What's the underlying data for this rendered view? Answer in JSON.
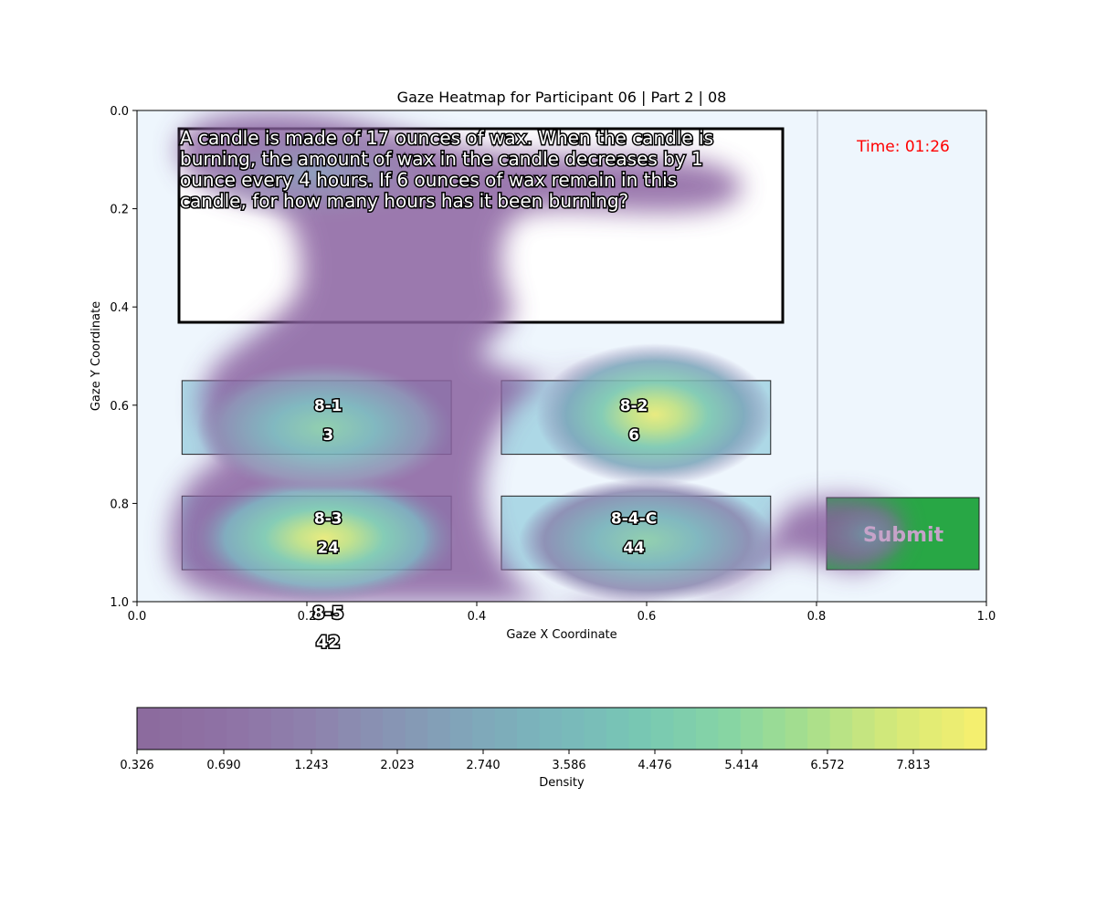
{
  "chart_data": {
    "type": "heatmap",
    "title": "Gaze Heatmap for Participant 06 | Part 2 | 08",
    "xlabel": "Gaze X Coordinate",
    "ylabel": "Gaze Y Coordinate",
    "xlim": [
      0.0,
      1.0
    ],
    "ylim": [
      1.0,
      0.0
    ],
    "x_ticks": [
      "0.0",
      "0.2",
      "0.4",
      "0.6",
      "0.8",
      "1.0"
    ],
    "y_ticks": [
      "0.0",
      "0.2",
      "0.4",
      "0.6",
      "0.8",
      "1.0"
    ],
    "grid": false,
    "question": [
      "A candle is made of 17 ounces of wax. When the candle is",
      "burning, the amount of wax in the candle decreases by 1",
      "ounce every 4 hours. If 6 ounces of wax remain in this",
      "candle, for how many hours has it been burning?"
    ],
    "timer": "Time: 01:26",
    "submit_label": "Submit",
    "options": [
      {
        "id": "8-1",
        "value": "3"
      },
      {
        "id": "8-2",
        "value": "6"
      },
      {
        "id": "8-3",
        "value": "24"
      },
      {
        "id": "8-4-C",
        "value": "44"
      },
      {
        "id": "8-5",
        "value": "42"
      }
    ],
    "density_hotspots": [
      {
        "x": 0.22,
        "y": 0.875,
        "peak": 8.4
      },
      {
        "x": 0.61,
        "y": 0.625,
        "peak": 8.0
      },
      {
        "x": 0.22,
        "y": 0.65,
        "peak": 6.0
      },
      {
        "x": 0.6,
        "y": 0.875,
        "peak": 5.5
      },
      {
        "x": 0.86,
        "y": 0.865,
        "peak": 1.2
      },
      {
        "x": 0.21,
        "y": 0.13,
        "peak": 1.5
      }
    ],
    "colorbar": {
      "label": "Density",
      "ticks": [
        "0.326",
        "0.690",
        "1.243",
        "2.023",
        "2.740",
        "3.586",
        "4.476",
        "5.414",
        "6.572",
        "7.813"
      ],
      "colors": [
        "#8c6b9e",
        "#8f73a5",
        "#8e82ad",
        "#8796b4",
        "#7fa8ba",
        "#79b8bb",
        "#78c8b3",
        "#86d5a4",
        "#a8df8c",
        "#d4e979",
        "#f4ef6f"
      ]
    },
    "colors": {
      "plot_bg": "#eef6fd",
      "option_fill": "#add8e6",
      "submit_fill": "#28a745",
      "timer_text": "#ff0000"
    }
  }
}
